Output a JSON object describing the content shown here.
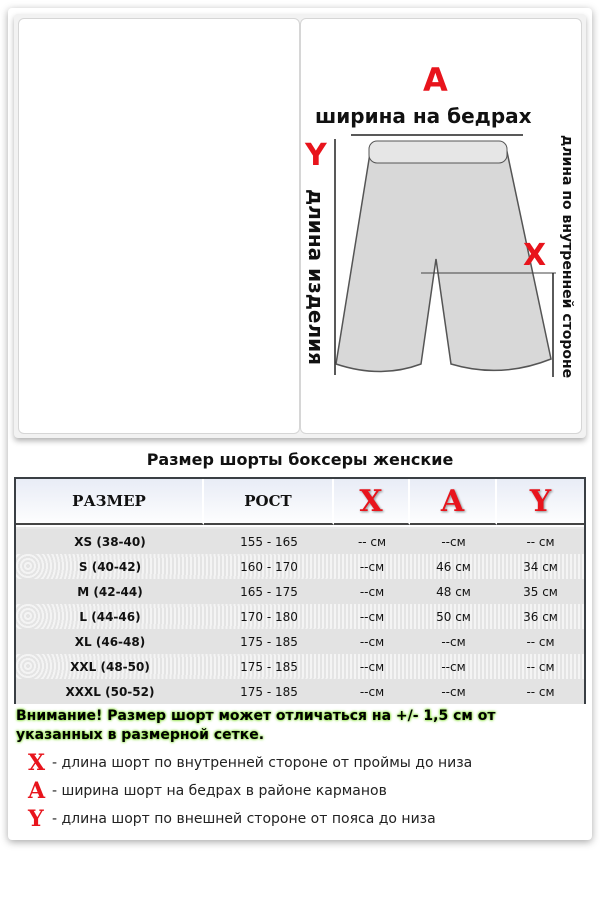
{
  "diagram": {
    "letter_a": "A",
    "width_label": "ширина на бедрах",
    "letter_y": "Y",
    "length_label": "длина изделия",
    "letter_x": "X",
    "inner_label": "длина по внутренней стороне"
  },
  "title": "Размер шорты боксеры женские",
  "table": {
    "headers": [
      "РАЗМЕР",
      "РОСТ",
      "X",
      "A",
      "Y"
    ],
    "rows": [
      [
        "XS (38-40)",
        "155 - 165",
        "-- см",
        "--см",
        "-- см"
      ],
      [
        "S (40-42)",
        "160 - 170",
        "--см",
        "46 см",
        "34 см"
      ],
      [
        "M (42-44)",
        "165 - 175",
        "--см",
        "48 см",
        "35 см"
      ],
      [
        "L (44-46)",
        "170 - 180",
        "--см",
        "50 см",
        "36 см"
      ],
      [
        "XL (46-48)",
        "175 - 185",
        "--см",
        "--см",
        "-- см"
      ],
      [
        "XXL (48-50)",
        "175 - 185",
        "--см",
        "--см",
        "-- см"
      ],
      [
        "XXXL (50-52)",
        "175 - 185",
        "--см",
        "--см",
        "-- см"
      ]
    ]
  },
  "warning": "Внимание! Размер шорт может отличаться на +/- 1,5 см от указанных в размерной сетке.",
  "legend": [
    {
      "letter": "X",
      "text": "- длина шорт по внутренней стороне от проймы до низа"
    },
    {
      "letter": "A",
      "text": "- ширина шорт на бедрах в районе карманов"
    },
    {
      "letter": "Y",
      "text": "- длина шорт по внешней стороне от пояса до низа"
    }
  ],
  "colors": {
    "accent": "#e8141c",
    "highlight": "#7fdc2a"
  }
}
